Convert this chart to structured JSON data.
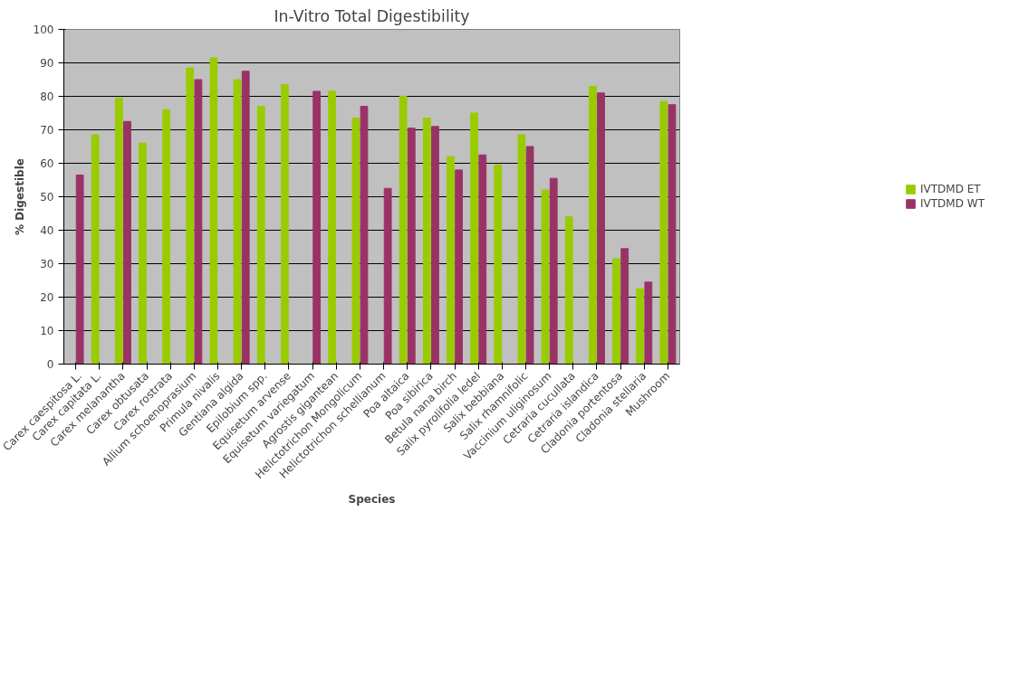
{
  "chart_data": {
    "type": "bar",
    "title": "In-Vitro Total Digestibility",
    "xlabel": "Species",
    "ylabel": "% Digestible",
    "categories": [
      "Carex caespitosa L.",
      "Carex capitata L.",
      "Carex melanantha",
      "Carex obtusata",
      "Carex rostrata",
      "Allium schoenoprasium",
      "Primula nivalis",
      "Gentiana algida",
      "Epilobium spp.",
      "Equisetum arvense",
      "Equisetum variegatum",
      "Agrostis gigantean",
      "Helictotrichon Mongolicum",
      "Helictotrichon schellianum",
      "Poa altaica",
      "Poa sibirica",
      "Betula nana birch",
      "Salix pyrolifolia ledel",
      "Salix bebbiana",
      "Salix rhamnifolic",
      "Vaccinium uliginosum",
      "Cetraria cucullata",
      "Cetraria islandica",
      "Cladonia portentosa",
      "Cladonia stellaria",
      "Mushroom"
    ],
    "series": [
      {
        "name": "IVTDMD ET",
        "color": "#99cc00",
        "values": [
          null,
          68.5,
          79.5,
          66,
          76,
          88.5,
          91.5,
          85,
          77,
          83.5,
          null,
          81.5,
          73.5,
          null,
          80,
          73.5,
          62,
          75,
          59.5,
          68.5,
          52,
          44,
          83,
          31.5,
          22.5,
          78.5
        ]
      },
      {
        "name": "IVTDMD WT",
        "color": "#993366",
        "values": [
          56.5,
          null,
          72.5,
          null,
          null,
          85,
          null,
          87.5,
          null,
          null,
          81.5,
          null,
          77,
          52.5,
          70.5,
          71,
          58,
          62.5,
          null,
          65,
          55.5,
          null,
          81,
          34.5,
          24.5,
          77.5
        ]
      }
    ],
    "ylim": [
      0,
      100
    ],
    "yticks": [
      0,
      10,
      20,
      30,
      40,
      50,
      60,
      70,
      80,
      90,
      100
    ],
    "grid": "y",
    "legend": "right"
  }
}
